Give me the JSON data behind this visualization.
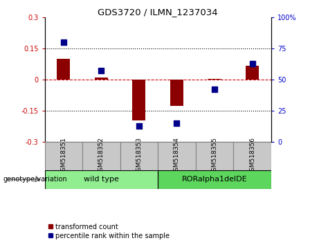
{
  "title": "GDS3720 / ILMN_1237034",
  "samples": [
    "GSM518351",
    "GSM518352",
    "GSM518353",
    "GSM518354",
    "GSM518355",
    "GSM518356"
  ],
  "transformed_count": [
    0.1,
    0.01,
    -0.195,
    -0.125,
    0.003,
    0.065
  ],
  "percentile_rank": [
    80,
    57,
    13,
    15,
    42,
    63
  ],
  "ylim_left": [
    -0.3,
    0.3
  ],
  "ylim_right": [
    0,
    100
  ],
  "yticks_left": [
    -0.3,
    -0.15,
    0,
    0.15,
    0.3
  ],
  "yticks_right": [
    0,
    25,
    50,
    75,
    100
  ],
  "ytick_labels_left": [
    "-0.3",
    "-0.15",
    "0",
    "0.15",
    "0.3"
  ],
  "ytick_labels_right": [
    "0",
    "25",
    "50",
    "75",
    "100%"
  ],
  "hlines": [
    0.15,
    -0.15
  ],
  "genotype_groups": [
    {
      "label": "wild type",
      "indices": [
        0,
        1,
        2
      ],
      "color": "#90EE90"
    },
    {
      "label": "RORalpha1delDE",
      "indices": [
        3,
        4,
        5
      ],
      "color": "#5CD65C"
    }
  ],
  "bar_color": "#8B0000",
  "dot_color": "#00008B",
  "bar_width": 0.35,
  "dot_size": 40,
  "legend_bar_label": "transformed count",
  "legend_dot_label": "percentile rank within the sample",
  "genotype_label": "genotype/variation",
  "background_color": "#ffffff",
  "plot_bg_color": "#ffffff",
  "left_axis_color": "#CC0000",
  "right_axis_color": "#0000CC",
  "dashed_line_color": "#CC0000",
  "hline_color": "#000000",
  "sample_box_color": "#C8C8C8",
  "sample_box_border": "#808080"
}
